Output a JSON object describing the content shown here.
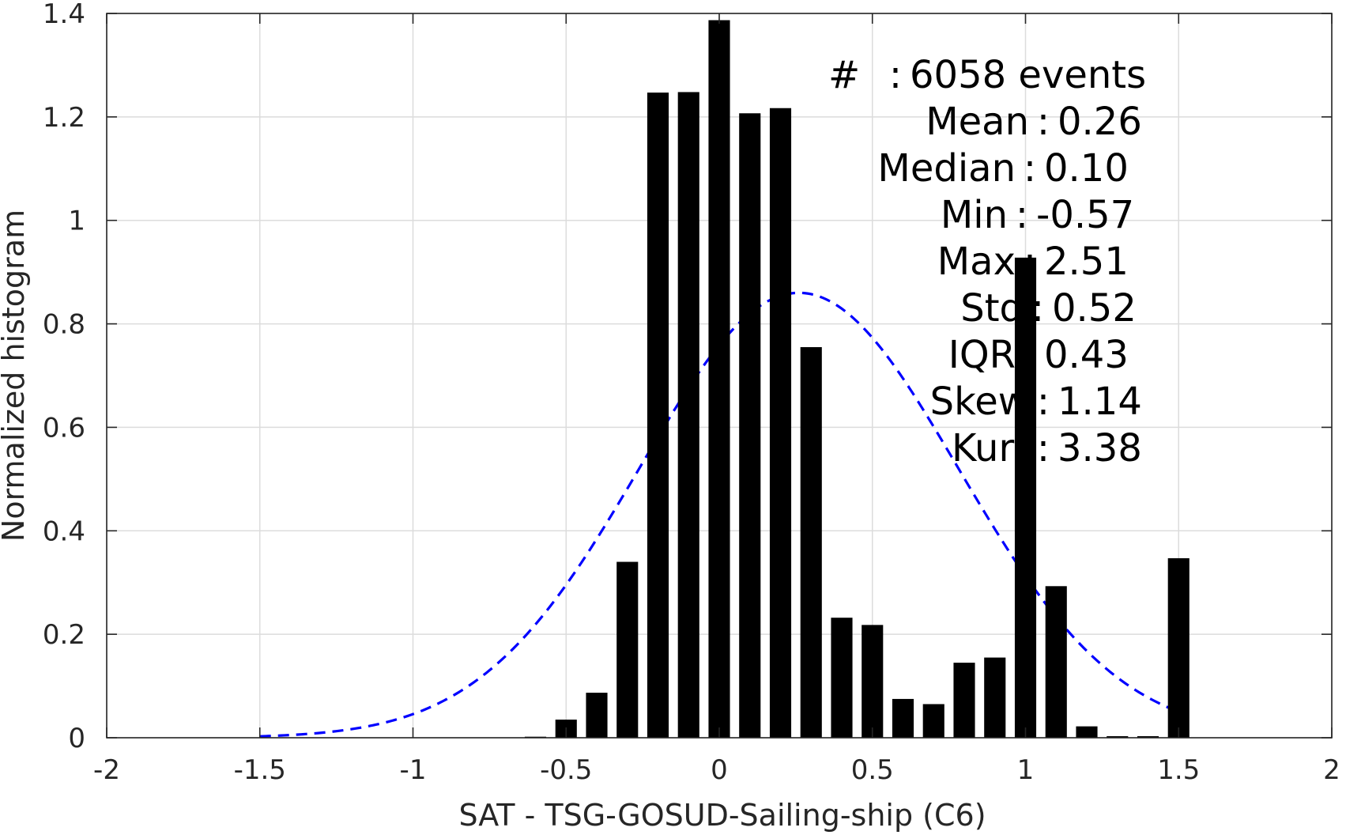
{
  "chart_data": {
    "type": "bar",
    "xlabel": "SAT - TSG-GOSUD-Sailing-ship (C6)",
    "ylabel": "Normalized histogram",
    "xlim": [
      -2,
      2
    ],
    "ylim": [
      0,
      1.4
    ],
    "grid": true,
    "xticks": [
      -2,
      -1.5,
      -1,
      -0.5,
      0,
      0.5,
      1,
      1.5,
      2
    ],
    "xtick_labels": [
      "-2",
      "-1.5",
      "-1",
      "-0.5",
      "0",
      "0.5",
      "1",
      "1.5",
      "2"
    ],
    "yticks": [
      0,
      0.2,
      0.4,
      0.6,
      0.8,
      1,
      1.2,
      1.4
    ],
    "ytick_labels": [
      "0",
      "0.2",
      "0.4",
      "0.6",
      "0.8",
      "1",
      "1.2",
      "1.4"
    ],
    "bar_width": 0.07,
    "bar_color": "#000000",
    "bars": {
      "x": [
        -0.6,
        -0.5,
        -0.4,
        -0.3,
        -0.2,
        -0.1,
        0,
        0.1,
        0.2,
        0.3,
        0.4,
        0.5,
        0.6,
        0.7,
        0.8,
        0.9,
        1.0,
        1.1,
        1.2,
        1.3,
        1.4,
        1.5
      ],
      "y": [
        0.002,
        0.035,
        0.087,
        0.34,
        1.247,
        1.248,
        1.387,
        1.207,
        1.217,
        0.755,
        0.232,
        0.218,
        0.075,
        0.065,
        0.145,
        0.155,
        0.928,
        0.293,
        0.022,
        0.003,
        0.003,
        0.347
      ]
    },
    "fit_curve": {
      "style": "dashed",
      "color": "#0000ff",
      "mean": 0.26,
      "std": 0.52,
      "peak": 0.86,
      "x_range": [
        -1.5,
        1.5
      ]
    },
    "stats": [
      {
        "key": "#",
        "sep": ":",
        "value": "6058 events"
      },
      {
        "key": "Mean",
        "sep": ":",
        "value": "0.26"
      },
      {
        "key": "Median",
        "sep": ":",
        "value": "0.10"
      },
      {
        "key": "Min",
        "sep": ":",
        "value": "-0.57"
      },
      {
        "key": "Max",
        "sep": ":",
        "value": "2.51"
      },
      {
        "key": "Std",
        "sep": ":",
        "value": "0.52"
      },
      {
        "key": "IQR",
        "sep": ":",
        "value": "0.43"
      },
      {
        "key": "Skew",
        "sep": ":",
        "value": "1.14"
      },
      {
        "key": "Kurt",
        "sep": ":",
        "value": "3.38"
      }
    ]
  }
}
